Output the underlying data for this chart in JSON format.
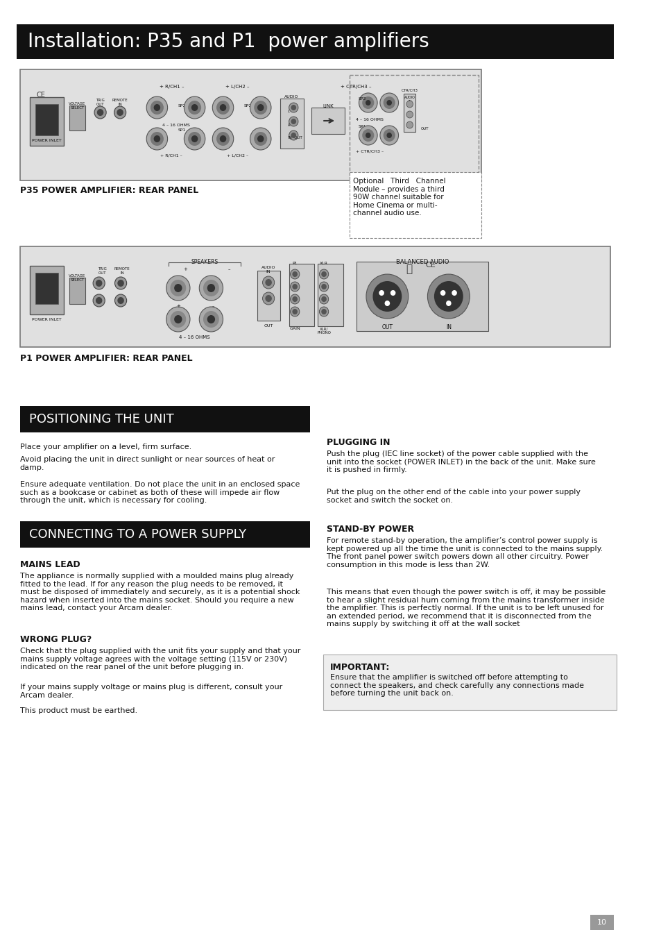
{
  "page_bg": "#ffffff",
  "title_bg": "#111111",
  "title_text": "Installation: P35 and P1  power amplifiers",
  "title_color": "#ffffff",
  "title_fontsize": 20,
  "section_bg": "#111111",
  "section_text_color": "#ffffff",
  "heading1": "POSITIONING THE UNIT",
  "heading2": "CONNECTING TO A POWER SUPPLY",
  "pos_para1": "Place your amplifier on a level, firm surface.",
  "pos_para2": "Avoid placing the unit in direct sunlight or near sources of heat or\ndamp.",
  "pos_para3": "Ensure adequate ventilation. Do not place the unit in an enclosed space\nsuch as a bookcase or cabinet as both of these will impede air flow\nthrough the unit, which is necessary for cooling.",
  "sub1": "MAINS LEAD",
  "mains_text": "The appliance is normally supplied with a moulded mains plug already\nfitted to the lead. If for any reason the plug needs to be removed, it\nmust be disposed of immediately and securely, as it is a potential shock\nhazard when inserted into the mains socket. Should you require a new\nmains lead, contact your Arcam dealer.",
  "sub2": "WRONG PLUG?",
  "wrong_text1": "Check that the plug supplied with the unit fits your supply and that your\nmains supply voltage agrees with the voltage setting (115V or 230V)\nindicated on the rear panel of the unit before plugging in.",
  "wrong_text2": "If your mains supply voltage or mains plug is different, consult your\nArcam dealer.",
  "wrong_text3": "This product must be earthed.",
  "sub3": "PLUGGING IN",
  "plug_text1": "Push the plug (IEC line socket) of the power cable supplied with the\nunit into the socket (POWER INLET) in the back of the unit. Make sure\nit is pushed in firmly.",
  "plug_text2": "Put the plug on the other end of the cable into your power supply\nsocket and switch the socket on.",
  "sub4": "STAND-BY POWER",
  "standby_text1": "For remote stand-by operation, the amplifier’s control power supply is\nkept powered up all the time the unit is connected to the mains supply.\nThe front panel power switch powers down all other circuitry. Power\nconsumption in this mode is less than 2W.",
  "standby_text2": "This means that even though the power switch is off, it may be possible\nto hear a slight residual hum coming from the mains transformer inside\nthe amplifier. This is perfectly normal. If the unit is to be left unused for\nan extended period, we recommend that it is disconnected from the\nmains supply by switching it off at the wall socket",
  "important_label": "IMPORTANT",
  "important_text": "Ensure that the amplifier is switched off before attempting to\nconnect the speakers, and check carefully any connections made\nbefore turning the unit back on.",
  "p35_label": "P35 POWER AMPLIFIER: REAR PANEL",
  "p1_label": "P1 POWER AMPLIFIER: REAR PANEL",
  "optional_text": "Optional   Third   Channel\nModule – provides a third\n90W channel suitable for\nHome Cinema or multi-\nchannel audio use.",
  "page_number": "10"
}
